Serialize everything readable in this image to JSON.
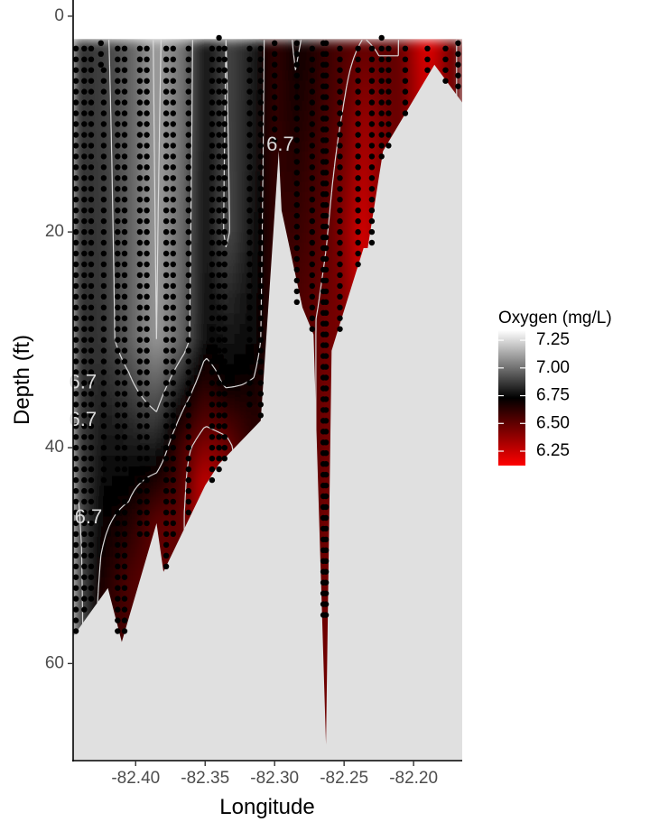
{
  "chart_data": {
    "type": "heatmap",
    "subtype": "depth-profile contour",
    "xlabel": "Longitude",
    "ylabel": "Depth (ft)",
    "xlim": [
      -82.445,
      -82.165
    ],
    "ylim": [
      69,
      -1.5
    ],
    "y_reversed": true,
    "x_ticks": [
      -82.4,
      -82.35,
      -82.3,
      -82.25,
      -82.2
    ],
    "x_tick_labels": [
      "-82.40",
      "-82.35",
      "-82.30",
      "-82.25",
      "-82.20"
    ],
    "y_ticks": [
      0,
      20,
      40,
      60
    ],
    "y_tick_labels": [
      "0",
      "20",
      "40",
      "60"
    ],
    "grid": false,
    "legend": {
      "title": "Oxygen (mg/L)",
      "placement": "right",
      "ticks": [
        7.25,
        7.0,
        6.75,
        6.5,
        6.25
      ],
      "tick_labels": [
        "7.25",
        "7.00",
        "6.75",
        "6.50",
        "6.25"
      ],
      "range": [
        6.12,
        7.34
      ],
      "colors": [
        "#ff0000",
        "#000000",
        "#ffffff"
      ]
    },
    "contour_levels": [
      6.5,
      6.7,
      6.9,
      7.1
    ],
    "contour_labels": [
      {
        "text": "6.7",
        "x": -82.296,
        "y": 12
      },
      {
        "text": "6.7",
        "x": -82.438,
        "y": 34
      },
      {
        "text": "6.7",
        "x": -82.438,
        "y": 37.5
      },
      {
        "text": "6.7",
        "x": -82.434,
        "y": 46.5
      }
    ],
    "top_depth": 2.2,
    "bottom_profile": [
      [
        -82.445,
        57.5
      ],
      [
        -82.42,
        53
      ],
      [
        -82.41,
        58
      ],
      [
        -82.385,
        47
      ],
      [
        -82.38,
        51.5
      ],
      [
        -82.35,
        43.5
      ],
      [
        -82.34,
        41.5
      ],
      [
        -82.31,
        37.5
      ],
      [
        -82.297,
        12.5
      ],
      [
        -82.295,
        18
      ],
      [
        -82.28,
        27
      ],
      [
        -82.272,
        29.5
      ],
      [
        -82.263,
        67.5
      ],
      [
        -82.259,
        31
      ],
      [
        -82.236,
        21.5
      ],
      [
        -82.233,
        21.5
      ],
      [
        -82.222,
        12.5
      ],
      [
        -82.185,
        4.5
      ],
      [
        -82.165,
        8
      ]
    ],
    "oxygen_field": [
      {
        "x": -82.44,
        "profile": [
          [
            2,
            6.85
          ],
          [
            30,
            6.85
          ],
          [
            60,
            6.95
          ]
        ]
      },
      {
        "x": -82.425,
        "profile": [
          [
            2,
            6.88
          ],
          [
            30,
            6.85
          ],
          [
            50,
            6.7
          ],
          [
            60,
            6.6
          ]
        ]
      },
      {
        "x": -82.405,
        "profile": [
          [
            2,
            6.95
          ],
          [
            30,
            6.95
          ],
          [
            45,
            6.7
          ],
          [
            52,
            6.55
          ]
        ]
      },
      {
        "x": -82.385,
        "profile": [
          [
            2,
            7.12
          ],
          [
            30,
            7.1
          ],
          [
            40,
            6.8
          ],
          [
            47,
            6.5
          ]
        ]
      },
      {
        "x": -82.365,
        "profile": [
          [
            2,
            7.0
          ],
          [
            30,
            6.95
          ],
          [
            40,
            6.55
          ],
          [
            46,
            6.5
          ]
        ]
      },
      {
        "x": -82.35,
        "profile": [
          [
            2,
            6.75
          ],
          [
            30,
            6.75
          ],
          [
            38,
            6.5
          ],
          [
            43,
            6.25
          ]
        ]
      },
      {
        "x": -82.335,
        "profile": [
          [
            2,
            6.9
          ],
          [
            20,
            6.92
          ],
          [
            34,
            6.72
          ],
          [
            40,
            6.45
          ]
        ]
      },
      {
        "x": -82.315,
        "profile": [
          [
            2,
            6.8
          ],
          [
            30,
            6.75
          ],
          [
            37,
            6.65
          ]
        ]
      },
      {
        "x": -82.3,
        "profile": [
          [
            2,
            6.6
          ],
          [
            12,
            6.6
          ]
        ]
      },
      {
        "x": -82.285,
        "profile": [
          [
            2,
            6.72
          ],
          [
            20,
            6.6
          ],
          [
            27,
            6.55
          ]
        ]
      },
      {
        "x": -82.27,
        "profile": [
          [
            2,
            6.65
          ],
          [
            28,
            6.5
          ]
        ]
      },
      {
        "x": -82.262,
        "profile": [
          [
            2,
            6.6
          ],
          [
            30,
            6.45
          ],
          [
            55,
            6.45
          ]
        ]
      },
      {
        "x": -82.25,
        "profile": [
          [
            2,
            6.55
          ],
          [
            20,
            6.4
          ],
          [
            29,
            6.45
          ]
        ]
      },
      {
        "x": -82.236,
        "profile": [
          [
            2,
            6.5
          ],
          [
            10,
            6.35
          ],
          [
            20,
            6.2
          ]
        ]
      },
      {
        "x": -82.225,
        "profile": [
          [
            2,
            6.52
          ],
          [
            12,
            6.4
          ]
        ]
      },
      {
        "x": -82.21,
        "profile": [
          [
            2,
            6.5
          ],
          [
            10,
            6.5
          ]
        ]
      },
      {
        "x": -82.19,
        "profile": [
          [
            2,
            6.15
          ],
          [
            5,
            6.2
          ]
        ]
      },
      {
        "x": -82.17,
        "profile": [
          [
            2,
            6.5
          ],
          [
            8,
            6.5
          ]
        ]
      }
    ],
    "sample_profiles": [
      {
        "x": -82.443,
        "top": 3,
        "bottom": 57
      },
      {
        "x": -82.437,
        "top": 3,
        "bottom": 55
      },
      {
        "x": -82.432,
        "top": 3,
        "bottom": 54
      },
      {
        "x": -82.425,
        "top": 2.5,
        "bottom": 5
      },
      {
        "x": -82.423,
        "top": 5,
        "bottom": 43
      },
      {
        "x": -82.413,
        "top": 3,
        "bottom": 57
      },
      {
        "x": -82.408,
        "top": 3,
        "bottom": 57
      },
      {
        "x": -82.397,
        "top": 3,
        "bottom": 48
      },
      {
        "x": -82.392,
        "top": 3,
        "bottom": 48
      },
      {
        "x": -82.378,
        "top": 3,
        "bottom": 51
      },
      {
        "x": -82.373,
        "top": 3,
        "bottom": 48
      },
      {
        "x": -82.362,
        "top": 3,
        "bottom": 46
      },
      {
        "x": -82.345,
        "top": 3,
        "bottom": 43
      },
      {
        "x": -82.34,
        "top": 2,
        "bottom": 42
      },
      {
        "x": -82.336,
        "top": 3,
        "bottom": 41
      },
      {
        "x": -82.318,
        "top": 3,
        "bottom": 36
      },
      {
        "x": -82.31,
        "top": 3,
        "bottom": 37
      },
      {
        "x": -82.3,
        "top": 2.5,
        "bottom": 12
      },
      {
        "x": -82.284,
        "top": 2.5,
        "bottom": 27
      },
      {
        "x": -82.273,
        "top": 3,
        "bottom": 29
      },
      {
        "x": -82.265,
        "top": 2.5,
        "bottom": 56
      },
      {
        "x": -82.263,
        "top": 2.5,
        "bottom": 56
      },
      {
        "x": -82.253,
        "top": 3,
        "bottom": 29
      },
      {
        "x": -82.24,
        "top": 3,
        "bottom": 23
      },
      {
        "x": -82.23,
        "top": 3,
        "bottom": 21
      },
      {
        "x": -82.223,
        "top": 2,
        "bottom": 13
      },
      {
        "x": -82.218,
        "top": 3,
        "bottom": 12
      },
      {
        "x": -82.206,
        "top": 3,
        "bottom": 9
      },
      {
        "x": -82.19,
        "top": 3,
        "bottom": 5
      },
      {
        "x": -82.177,
        "top": 3,
        "bottom": 6
      },
      {
        "x": -82.168,
        "top": 2.5,
        "bottom": 7
      }
    ]
  }
}
